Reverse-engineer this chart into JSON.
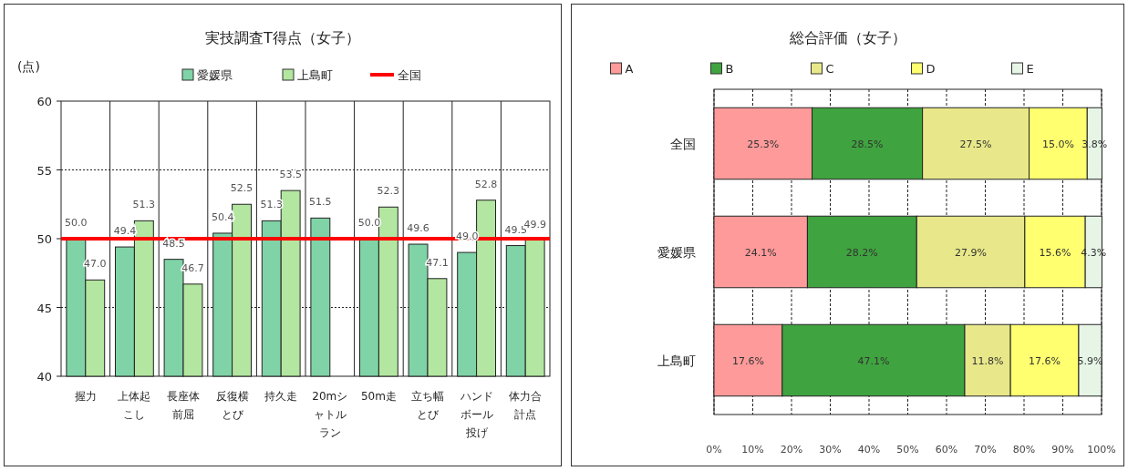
{
  "chart_data": [
    {
      "type": "bar",
      "title": "実技調査T得点（女子）",
      "ylabel": "(点)",
      "categories": [
        "握力",
        "上体起こし",
        "長座体前屈",
        "反復横とび",
        "持久走",
        "20mシャトルラン",
        "50m走",
        "立ち幅とび",
        "ハンドボール投げ",
        "体力合計点"
      ],
      "series": [
        {
          "name": "愛媛県",
          "color": "#7fd3a6",
          "values": [
            50.0,
            49.4,
            48.5,
            50.4,
            51.3,
            51.5,
            50.0,
            49.6,
            49.0,
            49.5
          ],
          "value_labels": [
            "50.0",
            "49.4",
            "48.5",
            "50.4",
            "51.3",
            "51.5",
            "50.0",
            "49.6",
            "49.0",
            "49.5"
          ]
        },
        {
          "name": "上島町",
          "color": "#b3e6a0",
          "values": [
            47.0,
            51.3,
            46.7,
            52.5,
            53.5,
            null,
            52.3,
            47.1,
            52.8,
            49.9
          ],
          "value_labels": [
            "47.0",
            "51.3",
            "46.7",
            "52.5",
            "53.5",
            null,
            "52.3",
            "47.1",
            "52.8",
            "49.9"
          ]
        }
      ],
      "ref_lines": [
        {
          "axis": "y",
          "value": 50,
          "label": "全国",
          "color": "#ff0000"
        }
      ],
      "ylim": [
        40,
        60
      ],
      "yticks": [
        40,
        45,
        50,
        55,
        60
      ],
      "grid": true,
      "legend": "top"
    },
    {
      "type": "bar",
      "title": "総合評価（女子）",
      "orientation": "horizontal",
      "stacked": true,
      "categories": [
        "全国",
        "愛媛県",
        "上島町"
      ],
      "series": [
        {
          "name": "A",
          "color": "#ff9a9a",
          "values": [
            25.3,
            24.1,
            17.6
          ],
          "value_labels": [
            "25.3%",
            "24.1%",
            "17.6%"
          ]
        },
        {
          "name": "B",
          "color": "#3fa33f",
          "values": [
            28.5,
            28.2,
            47.1
          ],
          "value_labels": [
            "28.5%",
            "28.2%",
            "47.1%"
          ]
        },
        {
          "name": "C",
          "color": "#e8e88a",
          "values": [
            27.5,
            27.9,
            11.8
          ],
          "value_labels": [
            "27.5%",
            "27.9%",
            "11.8%"
          ]
        },
        {
          "name": "D",
          "color": "#ffff70",
          "values": [
            15.0,
            15.6,
            17.6
          ],
          "value_labels": [
            "15.0%",
            "15.6%",
            "17.6%"
          ]
        },
        {
          "name": "E",
          "color": "#e6f5e6",
          "values": [
            3.8,
            4.3,
            5.9
          ],
          "value_labels": [
            "3.8%",
            "4.3%",
            "5.9%"
          ]
        }
      ],
      "xlim": [
        0,
        100
      ],
      "xticks": [
        {
          "value": 0,
          "label": "0%"
        },
        {
          "value": 10,
          "label": "10%"
        },
        {
          "value": 20,
          "label": "20%"
        },
        {
          "value": 30,
          "label": "30%"
        },
        {
          "value": 40,
          "label": "40%"
        },
        {
          "value": 50,
          "label": "50%"
        },
        {
          "value": 60,
          "label": "60%"
        },
        {
          "value": 70,
          "label": "70%"
        },
        {
          "value": 80,
          "label": "80%"
        },
        {
          "value": 90,
          "label": "90%"
        },
        {
          "value": 100,
          "label": "100%"
        }
      ],
      "grid": "x",
      "legend": "top"
    }
  ]
}
